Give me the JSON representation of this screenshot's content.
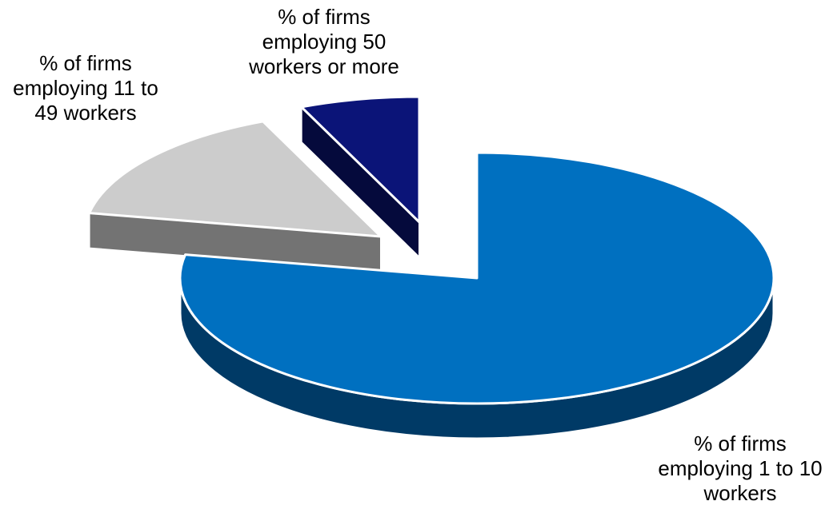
{
  "chart_data": {
    "type": "pie",
    "style": "3d-exploded",
    "title": "",
    "legend": "none",
    "slices": [
      {
        "label": "% of firms employing 1 to 10 workers",
        "value": 78,
        "color": "#0070c0",
        "side_color": "#003a66"
      },
      {
        "label": "% of firms employing 11 to 49 workers",
        "value": 15.5,
        "color": "#cccccc",
        "side_color": "#737373"
      },
      {
        "label": "% of firms employing 50 workers or more",
        "value": 6.5,
        "color": "#0b1478",
        "side_color": "#050a3c"
      }
    ],
    "label_lines": [
      [
        "% of firms",
        "employing 1 to 10",
        "workers"
      ],
      [
        "% of firms",
        "employing 11 to",
        "49 workers"
      ],
      [
        "% of firms",
        "employing 50",
        "workers or more"
      ]
    ]
  }
}
